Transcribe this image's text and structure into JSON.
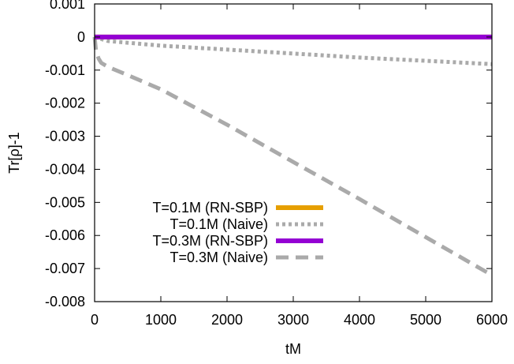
{
  "chart_data": {
    "type": "line",
    "title": "",
    "xlabel": "tM",
    "ylabel": "Tr[ρ]-1",
    "xlim": [
      0,
      6000
    ],
    "ylim": [
      -0.008,
      0.001
    ],
    "xticks": [
      0,
      1000,
      2000,
      3000,
      4000,
      5000,
      6000
    ],
    "xtick_labels": [
      "0",
      "1000",
      "2000",
      "3000",
      "4000",
      "5000",
      "6000"
    ],
    "yticks": [
      0.001,
      0,
      -0.001,
      -0.002,
      -0.003,
      -0.004,
      -0.005,
      -0.006,
      -0.007,
      -0.008
    ],
    "ytick_labels": [
      "0.001",
      "0",
      "-0.001",
      "-0.002",
      "-0.003",
      "-0.004",
      "-0.005",
      "-0.006",
      "-0.007",
      "-0.008"
    ],
    "grid": false,
    "legend_position": "bottom-left",
    "series": [
      {
        "name": "T=0.1M (RN-SBP)",
        "color": "#E69F00",
        "style": "solid",
        "x": [
          0,
          6000
        ],
        "y": [
          0.0,
          0.0
        ]
      },
      {
        "name": "T=0.1M (Naive)",
        "color": "#AAAAAA",
        "style": "dotted",
        "x": [
          0,
          200,
          1000,
          2000,
          3000,
          4000,
          5000,
          6000
        ],
        "y": [
          0.0,
          -0.00012,
          -0.00026,
          -0.00038,
          -0.0005,
          -0.00062,
          -0.00072,
          -0.00082
        ]
      },
      {
        "name": "T=0.3M (RN-SBP)",
        "color": "#9400D3",
        "style": "solid",
        "x": [
          0,
          6000
        ],
        "y": [
          0.0,
          0.0
        ]
      },
      {
        "name": "T=0.3M (Naive)",
        "color": "#AAAAAA",
        "style": "dashed",
        "x": [
          0,
          20,
          60,
          100,
          200,
          500,
          1000,
          2000,
          3000,
          4000,
          5000,
          6000
        ],
        "y": [
          0.0,
          -0.0004,
          -0.00065,
          -0.00078,
          -0.0009,
          -0.00115,
          -0.00158,
          -0.00265,
          -0.00378,
          -0.0049,
          -0.00605,
          -0.0072
        ]
      }
    ]
  }
}
